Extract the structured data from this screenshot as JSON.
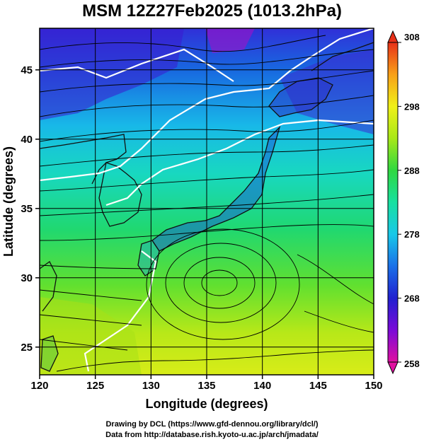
{
  "title": "MSM 12Z27Feb2025 (1013.2hPa)",
  "map": {
    "lon_range": [
      120,
      150
    ],
    "lat_range": [
      23,
      48
    ],
    "x_axis_label": "Longitude (degrees)",
    "y_axis_label": "Latitude  (degrees)",
    "x_ticks": [
      120,
      125,
      130,
      135,
      140,
      145,
      150
    ],
    "y_ticks": [
      25,
      30,
      35,
      40,
      45
    ],
    "grid": true,
    "streamlines": true,
    "color_scale": {
      "min": 258,
      "max": 308,
      "ticks": [
        "258",
        "268",
        "278",
        "288",
        "298",
        "308"
      ],
      "colors": [
        "#e010a0",
        "#7a0ad8",
        "#2020d0",
        "#1a70e8",
        "#18c8e8",
        "#18e0a0",
        "#30d840",
        "#a8e818",
        "#f0f018",
        "#f8a018",
        "#e83018"
      ]
    }
  },
  "credits": {
    "line1": "Drawing by DCL (https://www.gfd-dennou.org/library/dcl/)",
    "line2": "Data from http://database.rish.kyoto-u.ac.jp/arch/jmadata/"
  }
}
